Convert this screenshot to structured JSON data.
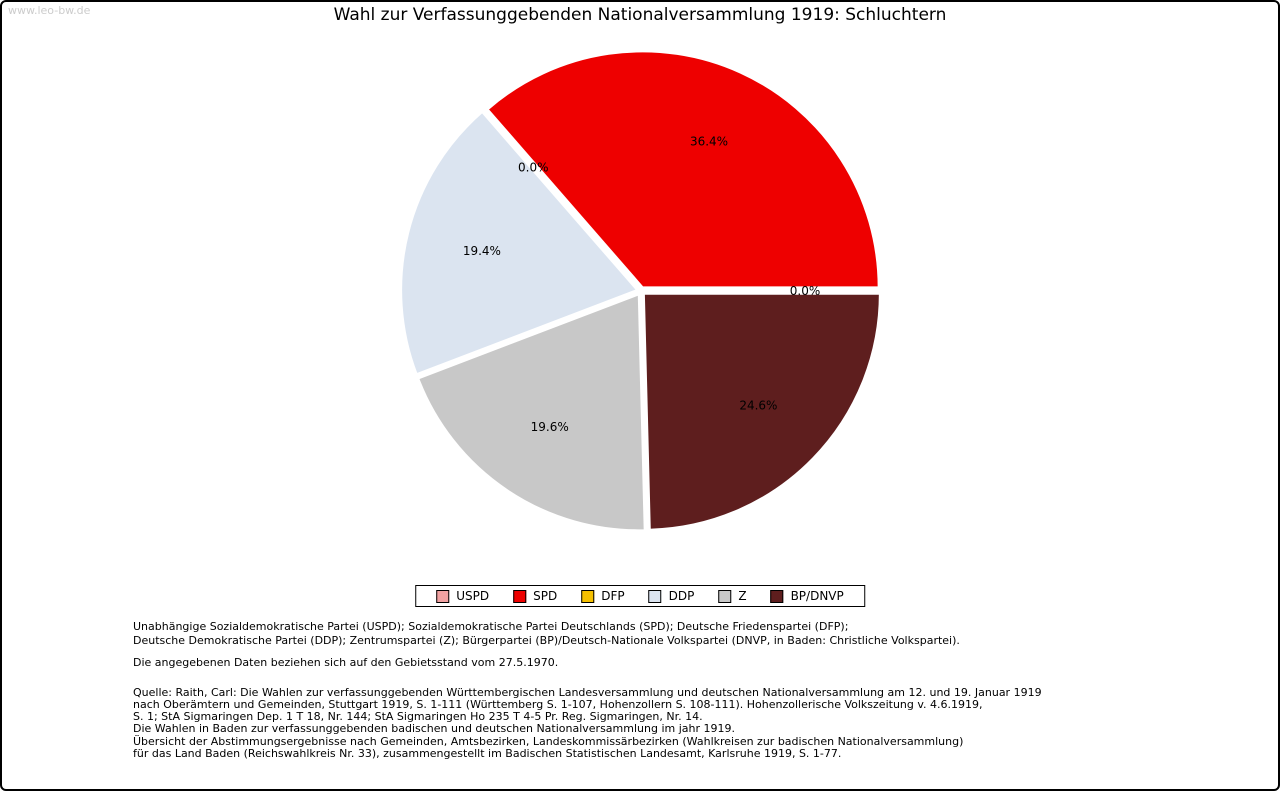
{
  "page": {
    "watermark": "www.leo-bw.de",
    "title": "Wahl zur Verfassunggebenden Nationalversammlung 1919: Schluchtern"
  },
  "chart_data": {
    "type": "pie",
    "title": "Wahl zur Verfassunggebenden Nationalversammlung 1919: Schluchtern",
    "unit": "%",
    "start_angle_deg": 0,
    "direction": "counterclockwise",
    "legend_position": "bottom",
    "label_format": "one_decimal_percent",
    "slices": [
      {
        "label": "USPD",
        "value": 0.0,
        "color": "#f2a2a2"
      },
      {
        "label": "SPD",
        "value": 36.4,
        "color": "#ee0000"
      },
      {
        "label": "DFP",
        "value": 0.0,
        "color": "#f5c000"
      },
      {
        "label": "DDP",
        "value": 19.4,
        "color": "#dbe4f0"
      },
      {
        "label": "Z",
        "value": 19.6,
        "color": "#c8c8c8"
      },
      {
        "label": "BP/DNVP",
        "value": 24.6,
        "color": "#5e1e1e"
      }
    ]
  },
  "notes": {
    "parties_line1": "Unabhängige Sozialdemokratische Partei (USPD); Sozialdemokratische Partei Deutschlands (SPD); Deutsche Friedenspartei (DFP);",
    "parties_line2": "Deutsche Demokratische Partei (DDP); Zentrumspartei (Z); Bürgerpartei (BP)/Deutsch-Nationale Volkspartei (DNVP, in Baden: Christliche Volkspartei).",
    "data_note": "Die angegebenen Daten beziehen sich auf den Gebietsstand vom 27.5.1970.",
    "source_lines": [
      "Quelle: Raith, Carl: Die Wahlen zur verfassunggebenden Württembergischen Landesversammlung und deutschen Nationalversammlung am 12. und 19. Januar 1919",
      "nach Oberämtern und Gemeinden, Stuttgart 1919, S. 1-111 (Württemberg S. 1-107, Hohenzollern S. 108-111). Hohenzollerische Volkszeitung v. 4.6.1919,",
      "S. 1; StA Sigmaringen Dep. 1 T 18, Nr. 144; StA Sigmaringen Ho 235 T 4-5 Pr. Reg. Sigmaringen, Nr. 14.",
      "Die Wahlen in Baden zur verfassunggebenden badischen und deutschen Nationalversammlung im jahr 1919.",
      "Übersicht der Abstimmungsergebnisse nach Gemeinden, Amtsbezirken, Landeskommissärbezirken (Wahlkreisen zur badischen Nationalversammlung)",
      "für das Land Baden (Reichswahlkreis Nr. 33), zusammengestellt im Badischen Statistischen Landesamt, Karlsruhe 1919, S. 1-77."
    ]
  }
}
